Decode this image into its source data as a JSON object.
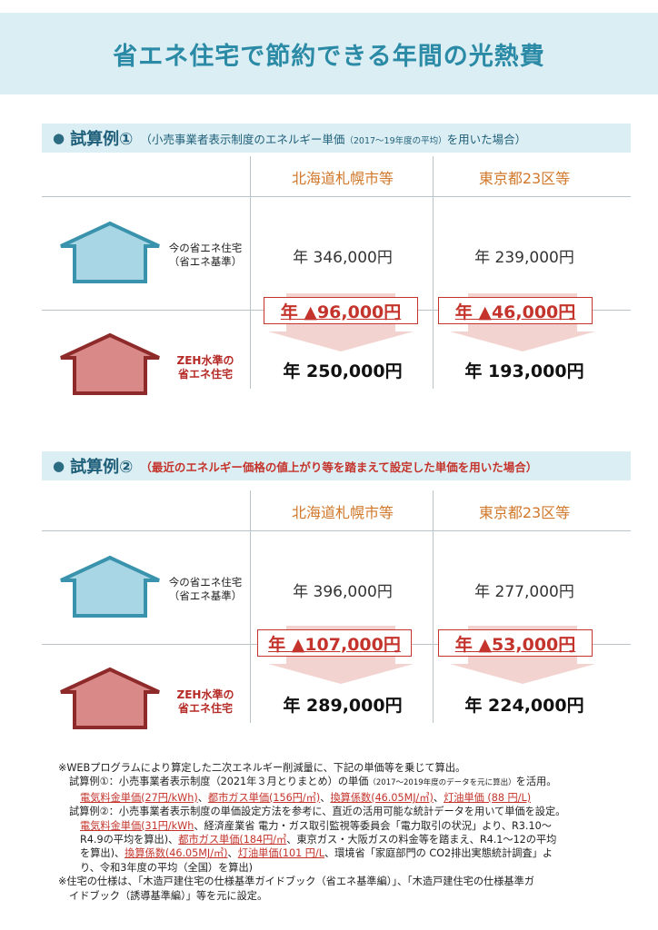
{
  "title": "省エネ住宅で節約できる年間の光熱費",
  "case1": {
    "bullet": "●",
    "label": "試算例①",
    "note_pre": "（小売事業者表示制度のエネルギー単価",
    "note_small": "（2017～19年度の平均）",
    "note_post": "を用いた場合）",
    "col1": "北海道札幌市等",
    "col2": "東京都23区等",
    "current_label": [
      "今の省エネ住宅",
      "（省エネ基準）"
    ],
    "zeh_label": [
      "ZEH水準の",
      "省エネ住宅"
    ],
    "current_prices": [
      "年 346,000円",
      "年 239,000円"
    ],
    "savings": [
      "年 ▲96,000円",
      "年 ▲46,000円"
    ],
    "zeh_prices": [
      "年 250,000円",
      "年 193,000円"
    ]
  },
  "case2": {
    "bullet": "●",
    "label": "試算例②",
    "note": "（最近のエネルギー価格の値上がり等を踏まえて設定した単価を用いた場合）",
    "col1": "北海道札幌市等",
    "col2": "東京都23区等",
    "current_label": [
      "今の省エネ住宅",
      "（省エネ基準）"
    ],
    "zeh_label": [
      "ZEH水準の",
      "省エネ住宅"
    ],
    "current_prices": [
      "年 396,000円",
      "年 277,000円"
    ],
    "savings": [
      "年 ▲107,000円",
      "年 ▲53,000円"
    ],
    "zeh_prices": [
      "年 289,000円",
      "年 224,000円"
    ]
  },
  "notes": {
    "n1": "※WEBプログラムにより算定した二次エネルギー削減量に、下記の単価等を乗じて算出。",
    "n2a": "試算例①：小売事業者表示制度（2021年３月とりまとめ）の単価",
    "n2b": "（2017～2019年度のデータを元に算出）",
    "n2c": "を活用。",
    "n3a": "電気料金単価(27円/kWh)",
    "n3b": "、",
    "n3c": "都市ガス単価(156円/㎥)",
    "n3d": "、",
    "n3e": "換算係数(46.05MJ/㎥)",
    "n3f": "、",
    "n3g": "灯油単価 (88 円/L)",
    "n4": "試算例②：小売事業者表示制度の単価設定方法を参考に、直近の活用可能な統計データを用いて単価を設定。",
    "n5a": "電気料金単価(31円/kWh",
    "n5b": "、経済産業省 電力・ガス取引監視等委員会「電力取引の状況」より、R3.10～",
    "n6a": "R4.9の平均を算出)、",
    "n6b": "都市ガス単価(184円/㎥",
    "n6c": "、東京ガス・大阪ガスの料金等を踏まえ、R4.1～12の平均",
    "n7a": "を算出)、",
    "n7b": "換算係数(46.05MJ/㎥)",
    "n7c": "、",
    "n7d": "灯油単価(101 円/L",
    "n7e": "、環境省「家庭部門の CO2排出実態統計調査」よ",
    "n8": "り、令和3年度の平均（全国）を算出)",
    "n9": "※住宅の仕様は、「木造戸建住宅の仕様基準ガイドブック（省エネ基準編）」、「木造戸建住宅の仕様基準ガ",
    "n10": "イドブック（誘導基準編）」等を元に設定。"
  },
  "colors": {
    "title": "#2b8aa6",
    "band": "#dbeef3",
    "accent_orange": "#d1782b",
    "accent_red": "#c4342c",
    "house_blue": "#a9d6e5",
    "house_blue_stroke": "#3a93ad",
    "house_red": "#d98a88",
    "house_red_stroke": "#8e2a2a",
    "arrow_pink": "#f3d3d0"
  }
}
